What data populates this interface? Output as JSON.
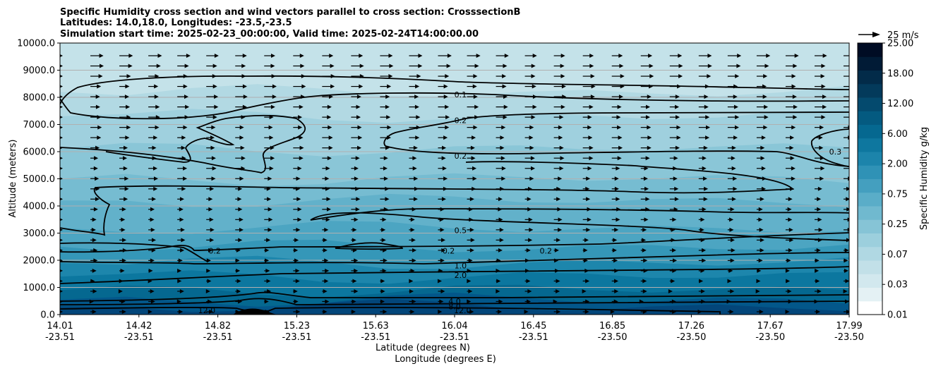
{
  "chart_data": {
    "type": "contour",
    "title_lines": [
      "Specific Humidity cross section and wind vectors parallel to cross section: CrosssectionB",
      "Latitudes: 14.0,18.0, Longitudes: -23.5,-23.5",
      "Simulation start time: 2025-02-23_00:00:00, Valid time: 2025-02-24T14:00:00.00"
    ],
    "xlabel_lines": [
      "Latitude (degrees N)",
      "Longitude (degrees E)"
    ],
    "ylabel": "Altitude (meters)",
    "ylim": [
      0,
      10000
    ],
    "y_ticks": [
      "0.0",
      "1000.0",
      "2000.0",
      "3000.0",
      "4000.0",
      "5000.0",
      "6000.0",
      "7000.0",
      "8000.0",
      "9000.0",
      "10000.0"
    ],
    "x_ticks": [
      {
        "lat": "14.01",
        "lon": "-23.51"
      },
      {
        "lat": "14.42",
        "lon": "-23.51"
      },
      {
        "lat": "14.82",
        "lon": "-23.51"
      },
      {
        "lat": "15.23",
        "lon": "-23.51"
      },
      {
        "lat": "15.63",
        "lon": "-23.51"
      },
      {
        "lat": "16.04",
        "lon": "-23.51"
      },
      {
        "lat": "16.45",
        "lon": "-23.51"
      },
      {
        "lat": "16.85",
        "lon": "-23.50"
      },
      {
        "lat": "17.26",
        "lon": "-23.50"
      },
      {
        "lat": "17.67",
        "lon": "-23.50"
      },
      {
        "lat": "17.99",
        "lon": "-23.50"
      }
    ],
    "grid": "horizontal",
    "colorbar": {
      "label": "Specific Humidity g/kg",
      "tick_labels": [
        "0.01",
        "0.03",
        "0.07",
        "0.25",
        "0.75",
        "2.00",
        "6.00",
        "12.00",
        "18.00",
        "25.00"
      ],
      "colors": [
        "#ffffff",
        "#e4f1f4",
        "#d2e8ee",
        "#c2e0e8",
        "#b0d8e3",
        "#9ccfdd",
        "#86c4d6",
        "#70b9cf",
        "#5aadc8",
        "#449fbf",
        "#2f92b6",
        "#1c84ab",
        "#0e779f",
        "#056890",
        "#045a80",
        "#044a6e",
        "#033a5b",
        "#022b49",
        "#011b36",
        "#000c24"
      ]
    },
    "quiver_key": {
      "label": "25 m/s",
      "value": 25
    },
    "contour_labels": [
      {
        "text": "0.1",
        "x_lat": 16.03,
        "y": 8100
      },
      {
        "text": "0.2",
        "x_lat": 16.03,
        "y": 7150
      },
      {
        "text": "0.2",
        "x_lat": 16.03,
        "y": 5850
      },
      {
        "text": "0.3",
        "x_lat": 17.92,
        "y": 6000
      },
      {
        "text": "0.5",
        "x_lat": 16.03,
        "y": 3100
      },
      {
        "text": "0.2",
        "x_lat": 14.79,
        "y": 2350
      },
      {
        "text": "0.2",
        "x_lat": 15.97,
        "y": 2350
      },
      {
        "text": "0.2",
        "x_lat": 16.46,
        "y": 2350
      },
      {
        "text": "1.0",
        "x_lat": 16.03,
        "y": 1800
      },
      {
        "text": "2.0",
        "x_lat": 16.03,
        "y": 1450
      },
      {
        "text": "4.0",
        "x_lat": 16.0,
        "y": 500
      },
      {
        "text": "8.0",
        "x_lat": 16.0,
        "y": 300
      },
      {
        "text": "12.0",
        "x_lat": 16.04,
        "y": 150
      },
      {
        "text": "12.0",
        "x_lat": 14.75,
        "y": 150
      }
    ],
    "layers": [
      {
        "upper_m": 10000,
        "color": "#c4e2e9"
      },
      {
        "upper_m": 8200,
        "color": "#b2d9e3"
      },
      {
        "upper_m": 7300,
        "color": "#9fd0de"
      },
      {
        "upper_m": 6100,
        "color": "#8ac6d7"
      },
      {
        "upper_m": 5000,
        "color": "#76bcd1"
      },
      {
        "upper_m": 4200,
        "color": "#62b1ca"
      },
      {
        "upper_m": 3200,
        "color": "#4ca5c2"
      },
      {
        "upper_m": 2500,
        "color": "#3597b8"
      },
      {
        "upper_m": 1900,
        "color": "#1d86ac"
      },
      {
        "upper_m": 1400,
        "color": "#0c779f"
      },
      {
        "upper_m": 900,
        "color": "#056890"
      },
      {
        "upper_m": 550,
        "color": "#03578a"
      },
      {
        "upper_m": 300,
        "color": "#03467a"
      }
    ]
  }
}
